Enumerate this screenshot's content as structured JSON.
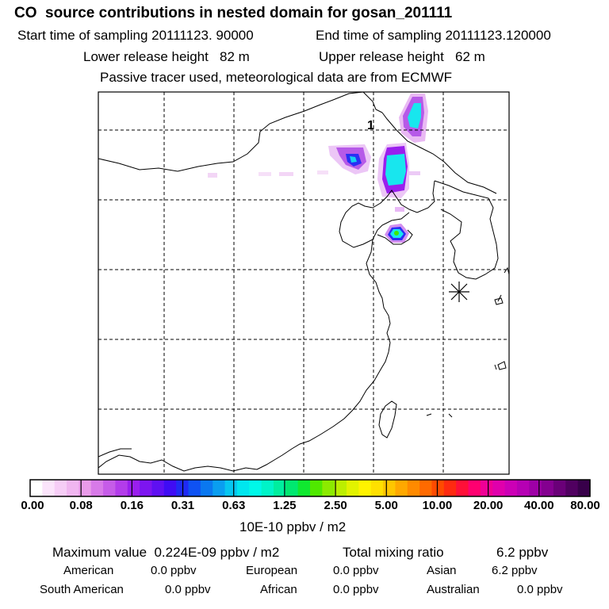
{
  "header": {
    "title": "CO  source contributions in nested domain for gosan_201111",
    "start_label": "Start time of sampling 20111123. 90000",
    "end_label": "End time of sampling 20111123.120000",
    "lower_label": "Lower release height   82 m",
    "upper_label": "Upper release height   62 m",
    "note": "Passive tracer used, meteorological data are from ECMWF"
  },
  "map": {
    "receptor_label": "1",
    "receptor_icon": "asterisk-receptor-icon"
  },
  "colorbar": {
    "ticks": [
      "0.00",
      "0.08",
      "0.16",
      "0.31",
      "0.63",
      "1.25",
      "2.50",
      "5.00",
      "10.00",
      "20.00",
      "40.00",
      "80.00"
    ],
    "unit": "10E-10 ppbv / m2",
    "colors": [
      "#ffffff",
      "#fbe4fb",
      "#f6cdf6",
      "#f0b6f0",
      "#e99be9",
      "#d87ae8",
      "#c65ce8",
      "#b33cea",
      "#9a1fee",
      "#7d15f0",
      "#5f10f2",
      "#3f0cf4",
      "#1f2af4",
      "#0f52f2",
      "#0a78f0",
      "#0a9ef0",
      "#06c6f0",
      "#00e6ee",
      "#00f8e8",
      "#00f4c8",
      "#00ee9e",
      "#00e870",
      "#10e830",
      "#50e800",
      "#8cea00",
      "#bcee00",
      "#e2f200",
      "#fff200",
      "#ffe000",
      "#ffc600",
      "#ffa800",
      "#ff8a00",
      "#ff6a00",
      "#ff4a00",
      "#ff2a10",
      "#ff1038",
      "#ff0070",
      "#f00096",
      "#e000ac",
      "#cc00b6",
      "#b600b4",
      "#9e00a6",
      "#840090",
      "#6a0078",
      "#500060",
      "#38004a"
    ]
  },
  "stats": {
    "max_label": "Maximum value  0.224E-09 ppbv / m2",
    "total_label": "Total mixing ratio",
    "total_value": "6.2 ppbv",
    "american_label": "American",
    "american_value": "0.0 ppbv",
    "european_label": "European",
    "european_value": "0.0 ppbv",
    "asian_label": "Asian",
    "asian_value": "6.2 ppbv",
    "south_american_label": "South American",
    "south_american_value": "0.0 ppbv",
    "african_label": "African",
    "african_value": "0.0 ppbv",
    "australian_label": "Australian",
    "australian_value": "0.0 ppbv"
  }
}
